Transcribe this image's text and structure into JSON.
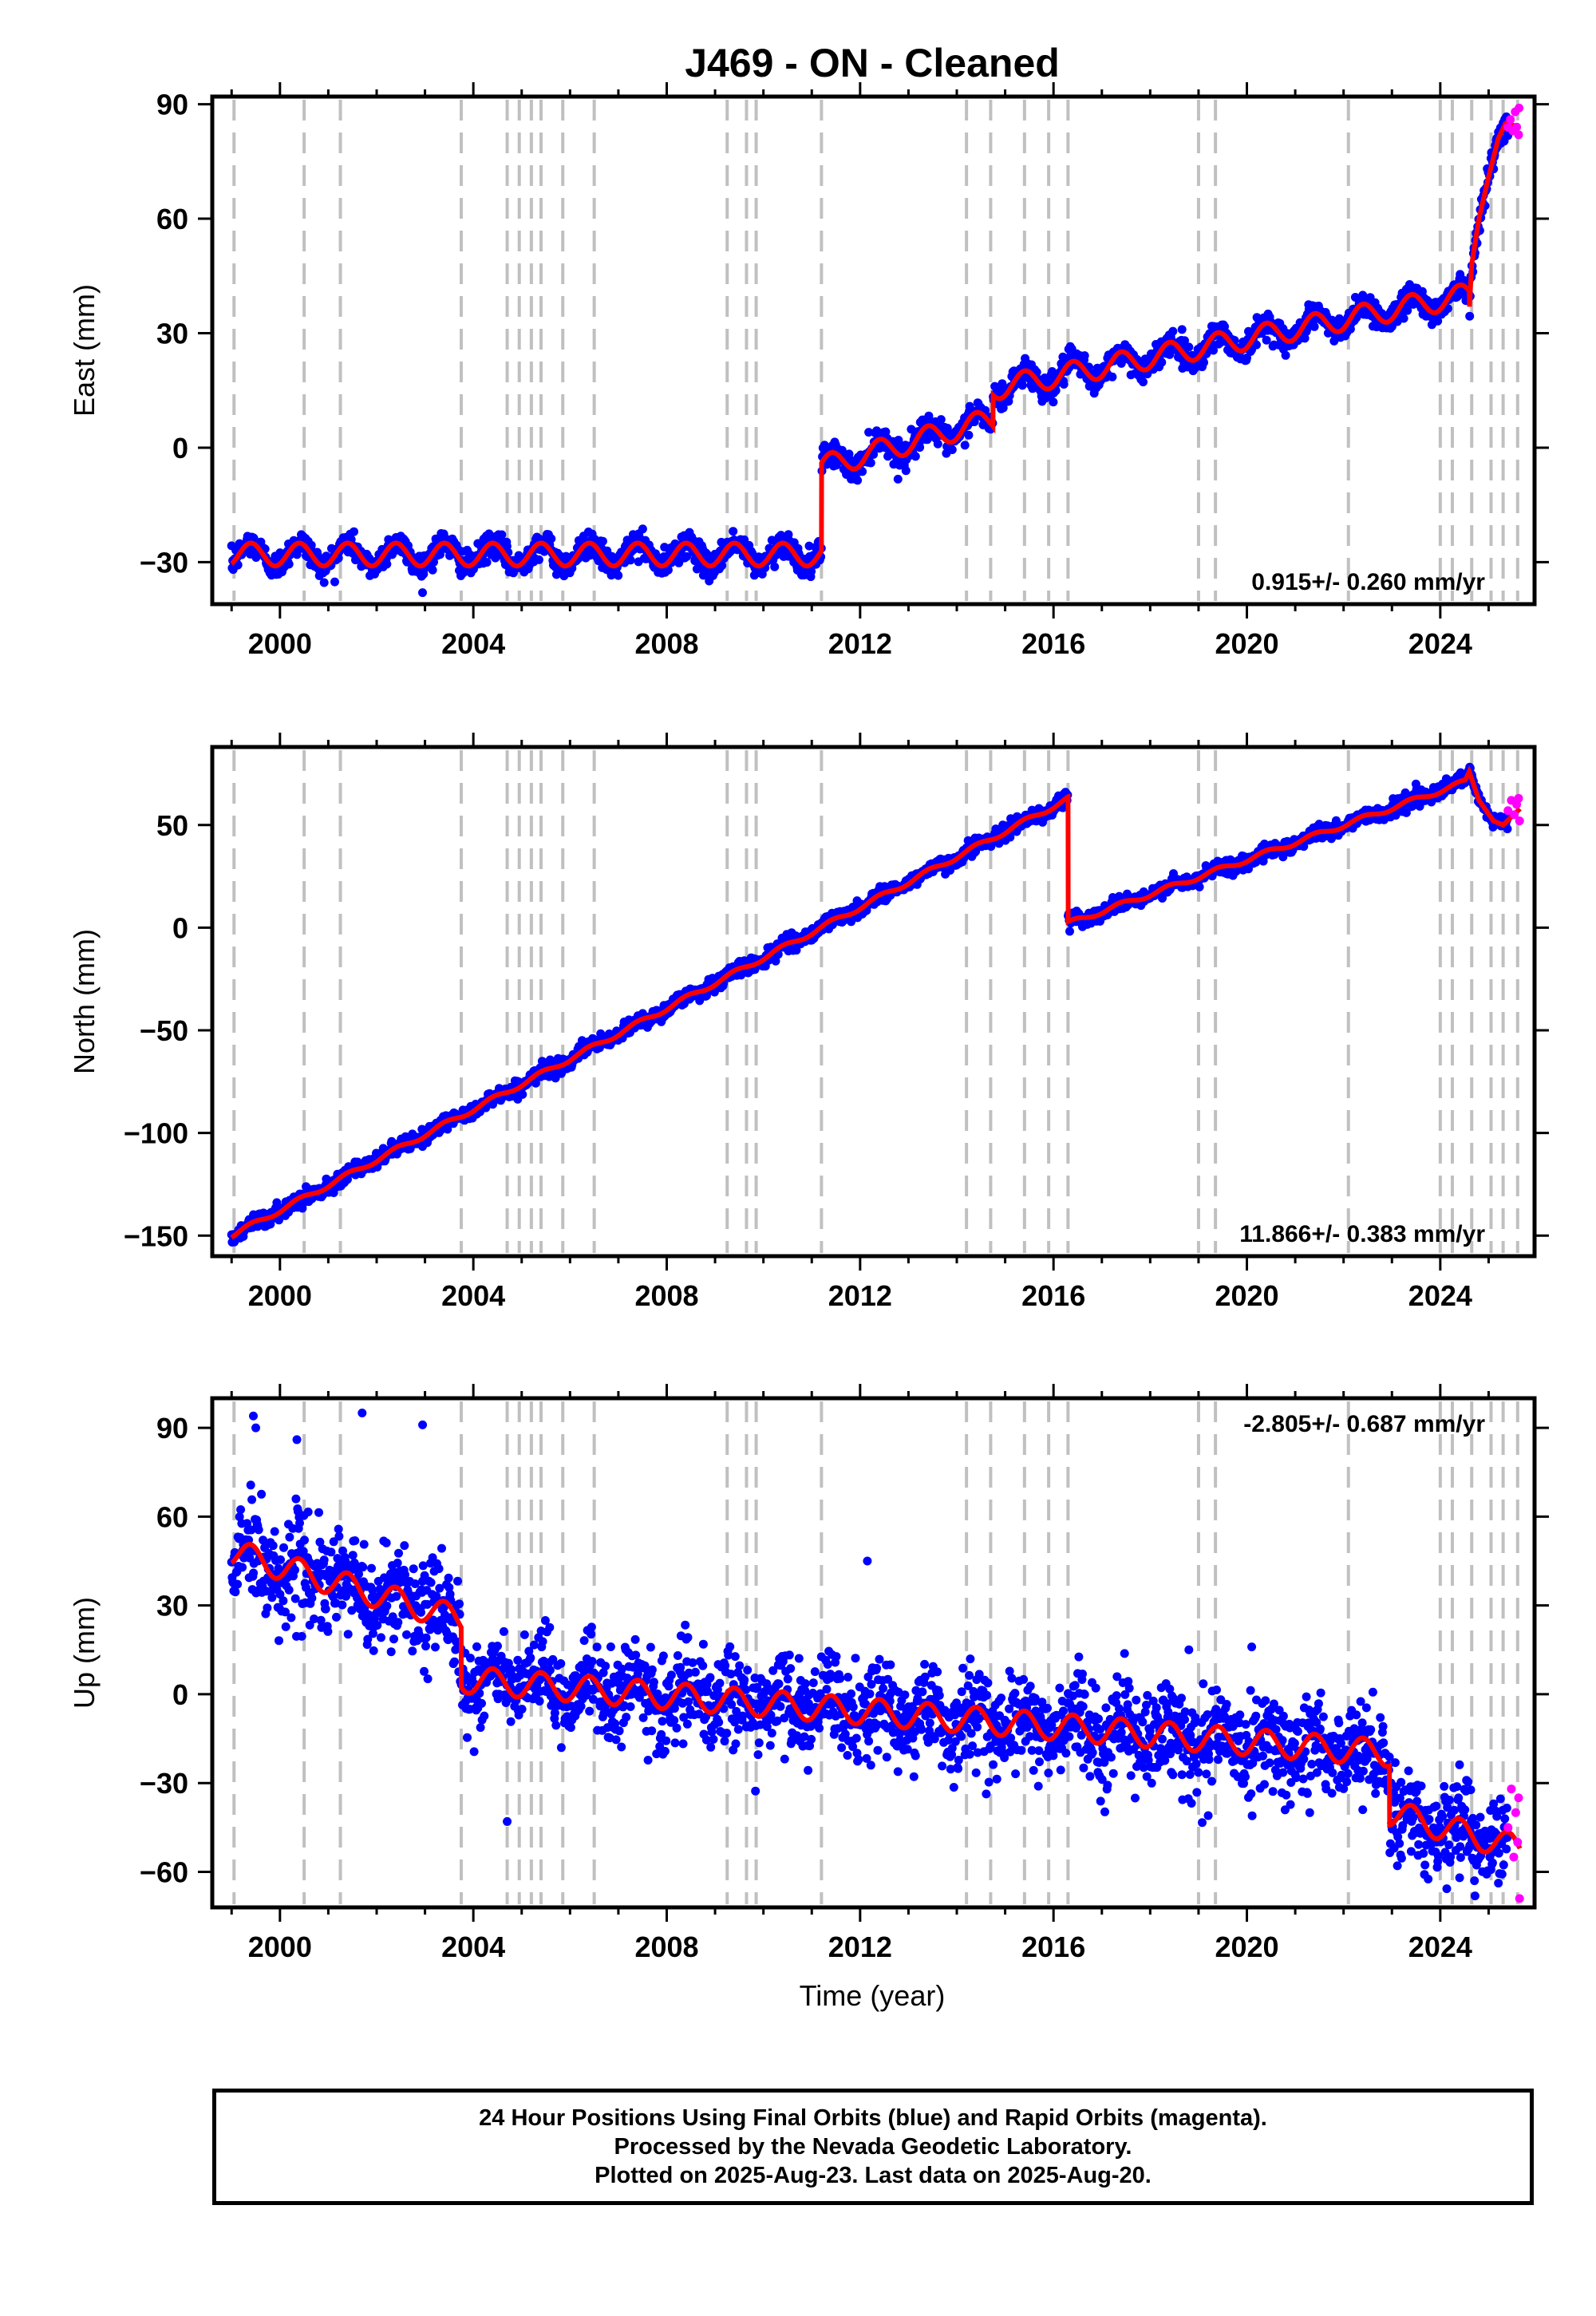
{
  "figure": {
    "title": "J469  - ON - Cleaned",
    "xlabel": "Time (year)",
    "caption": [
      "24 Hour Positions Using Final Orbits (blue) and Rapid Orbits (magenta).",
      "Processed by the Nevada Geodetic Laboratory.",
      "Plotted on 2025-Aug-23. Last data on 2025-Aug-20."
    ],
    "colors": {
      "final": "#0000ff",
      "rapid": "#ff00ff",
      "model": "#ff0000",
      "steps": "#c0c0c0"
    }
  },
  "chart_data": [
    {
      "type": "scatter",
      "panel": "east",
      "ylabel": "East (mm)",
      "rate_label": "0.915+/- 0.260 mm/yr",
      "rate_position": "bottom-right",
      "xlim": [
        1998.6,
        2025.95
      ],
      "ylim": [
        -41,
        92
      ],
      "xticks": [
        2000,
        2004,
        2008,
        2012,
        2016,
        2020,
        2024
      ],
      "yticks": [
        -30,
        0,
        30,
        60,
        90
      ],
      "yticklabels": [
        "−30",
        "0",
        "30",
        "60",
        "90"
      ],
      "steps": [
        1999.05,
        2000.5,
        2001.25,
        2003.75,
        2004.7,
        2004.95,
        2005.2,
        2005.4,
        2005.85,
        2006.5,
        2009.25,
        2009.65,
        2009.85,
        2011.2,
        2014.2,
        2014.7,
        2015.4,
        2015.9,
        2016.3,
        2019.0,
        2019.35,
        2022.1,
        2024.0,
        2024.25,
        2024.65,
        2025.05,
        2025.3,
        2025.6
      ],
      "model": {
        "segments": [
          [
            1999.0,
            2011.2,
            -28.0,
            0.0
          ],
          [
            2011.2,
            2014.75,
            -5.0,
            3.5
          ],
          [
            2014.75,
            2024.6,
            15.5,
            2.5
          ]
        ],
        "amplitude": 3.0,
        "noise": 1.7,
        "postseismic": {
          "start": 2024.6,
          "end": 2025.65,
          "points": [
            [
              2024.6,
              36
            ],
            [
              2024.65,
              48
            ],
            [
              2024.8,
              60
            ],
            [
              2025.0,
              71
            ],
            [
              2025.2,
              81
            ],
            [
              2025.35,
              85
            ],
            [
              2025.65,
              84
            ]
          ]
        }
      },
      "rapid": [
        [
          2025.4,
          84
        ],
        [
          2025.45,
          86
        ],
        [
          2025.5,
          83
        ],
        [
          2025.55,
          88
        ],
        [
          2025.58,
          84
        ],
        [
          2025.62,
          82
        ],
        [
          2025.63,
          89
        ]
      ]
    },
    {
      "type": "scatter",
      "panel": "north",
      "ylabel": "North (mm)",
      "rate_label": "11.866+/- 0.383 mm/yr",
      "rate_position": "bottom-right",
      "xlim": [
        1998.6,
        2025.95
      ],
      "ylim": [
        -160,
        88
      ],
      "xticks": [
        2000,
        2004,
        2008,
        2012,
        2016,
        2020,
        2024
      ],
      "yticks": [
        -150,
        -100,
        -50,
        0,
        50
      ],
      "yticklabels": [
        "−150",
        "−100",
        "−50",
        "0",
        "50"
      ],
      "steps": [
        1999.05,
        2000.5,
        2001.25,
        2003.75,
        2004.7,
        2004.95,
        2005.2,
        2005.4,
        2005.85,
        2006.5,
        2009.25,
        2009.65,
        2009.85,
        2011.2,
        2014.2,
        2014.7,
        2015.4,
        2015.9,
        2016.3,
        2019.0,
        2019.35,
        2022.1,
        2024.0,
        2024.25,
        2024.65,
        2025.05,
        2025.3,
        2025.6
      ],
      "model": {
        "segments": [
          [
            1999.0,
            2016.3,
            -150.0,
            12.3
          ],
          [
            2016.3,
            2024.5,
            2.0,
            8.4
          ]
        ],
        "amplitude": 1.2,
        "noise": 1.8,
        "postseismic": {
          "start": 2024.5,
          "end": 2025.65,
          "points": [
            [
              2024.5,
              71
            ],
            [
              2024.6,
              76
            ],
            [
              2024.8,
              62
            ],
            [
              2025.1,
              52
            ],
            [
              2025.3,
              50
            ],
            [
              2025.65,
              58
            ]
          ]
        }
      },
      "rapid": [
        [
          2025.4,
          57
        ],
        [
          2025.47,
          62
        ],
        [
          2025.53,
          55
        ],
        [
          2025.58,
          60
        ],
        [
          2025.62,
          63
        ],
        [
          2025.64,
          52
        ]
      ]
    },
    {
      "type": "scatter",
      "panel": "up",
      "ylabel": "Up (mm)",
      "rate_label": "-2.805+/- 0.687 mm/yr",
      "rate_position": "top-right",
      "xlim": [
        1998.6,
        2025.95
      ],
      "ylim": [
        -72,
        100
      ],
      "xticks": [
        2000,
        2004,
        2008,
        2012,
        2016,
        2020,
        2024
      ],
      "yticks": [
        -60,
        -30,
        0,
        30,
        60,
        90
      ],
      "yticklabels": [
        "−60",
        "−30",
        "0",
        "30",
        "60",
        "90"
      ],
      "steps": [
        1999.05,
        2000.5,
        2001.25,
        2003.75,
        2004.7,
        2004.95,
        2005.2,
        2005.4,
        2005.85,
        2006.5,
        2009.25,
        2009.65,
        2009.85,
        2011.2,
        2014.2,
        2014.7,
        2015.4,
        2015.9,
        2016.3,
        2019.0,
        2019.35,
        2022.1,
        2024.0,
        2024.25,
        2024.65,
        2025.05,
        2025.3,
        2025.6
      ],
      "model": {
        "segments": [
          [
            1999.0,
            2003.75,
            48.0,
            -4.8
          ],
          [
            2003.75,
            2022.95,
            5.0,
            -1.3
          ],
          [
            2022.95,
            2025.65,
            -40.0,
            -4.5
          ]
        ],
        "amplitude": 4.5,
        "noise": 7.5
      },
      "outliers": [
        [
          1999.45,
          94
        ],
        [
          1999.5,
          90
        ],
        [
          2000.35,
          86
        ],
        [
          2001.7,
          95
        ],
        [
          2002.95,
          91
        ],
        [
          2004.7,
          -43
        ],
        [
          2012.15,
          45
        ],
        [
          2018.8,
          15
        ],
        [
          2020.1,
          16
        ],
        [
          2021.3,
          -40
        ],
        [
          2019.2,
          -41
        ],
        [
          2024.4,
          -62
        ]
      ],
      "rapid": [
        [
          2025.4,
          -45
        ],
        [
          2025.47,
          -32
        ],
        [
          2025.52,
          -55
        ],
        [
          2025.56,
          -40
        ],
        [
          2025.6,
          -50
        ],
        [
          2025.62,
          -35
        ],
        [
          2025.64,
          -69
        ]
      ]
    }
  ]
}
